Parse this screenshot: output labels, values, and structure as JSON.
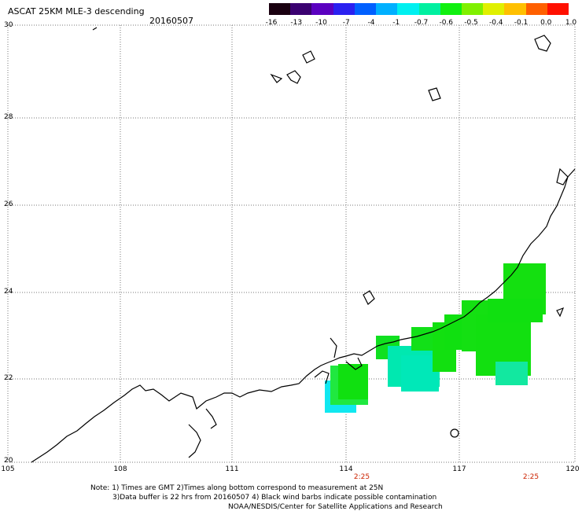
{
  "title": "ASCAT 25KM MLE-3 descending",
  "date": "20160507",
  "colorbar": {
    "labels": [
      "-16",
      "-13",
      "-10",
      "-7",
      "-4",
      "-1",
      "-0.7",
      "-0.6",
      "-0.5",
      "-0.4",
      "-0.1",
      "0.0",
      "1.0"
    ],
    "colors": [
      "#1a0010",
      "#3a0070",
      "#5a00c0",
      "#2a20f0",
      "#0060ff",
      "#00b0ff",
      "#00f0f0",
      "#00f0a0",
      "#10f010",
      "#80f000",
      "#e0f000",
      "#ffc000",
      "#ff6000",
      "#ff1000"
    ]
  },
  "axes": {
    "lat_labels": [
      "30",
      "28",
      "26",
      "24",
      "22",
      "20"
    ],
    "lon_labels": [
      "105",
      "108",
      "111",
      "114",
      "117",
      "120"
    ],
    "time_labels": [
      "2:25",
      "2:25"
    ]
  },
  "notes": [
    "Note: 1) Times are GMT 2)Times along bottom correspond to measurement at 25N",
    "3)Data buffer is 22 hrs from 20160507 4) Black wind barbs indicate possible contamination",
    "NOAA/NESDIS/Center for Satellite Applications and Research"
  ]
}
